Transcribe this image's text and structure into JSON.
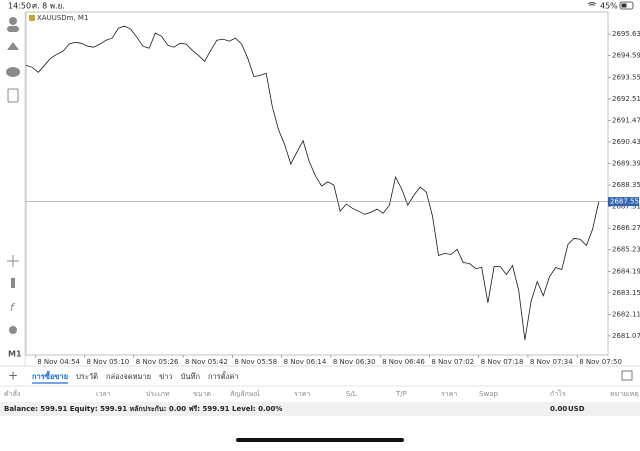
{
  "status_bar": {
    "time": "14:50",
    "date": "ศ. 8 พ.ย.",
    "battery": "45%"
  },
  "chart_data": {
    "type": "line",
    "title": "XAUUSDm, M1",
    "series": [
      {
        "color": "#1a1a1a",
        "x": [
          "8 Nov 04:51",
          "8 Nov 04:53",
          "8 Nov 04:55",
          "8 Nov 04:57",
          "8 Nov 04:59",
          "8 Nov 05:01",
          "8 Nov 05:03",
          "8 Nov 05:05",
          "8 Nov 05:07",
          "8 Nov 05:09",
          "8 Nov 05:11",
          "8 Nov 05:13",
          "8 Nov 05:15",
          "8 Nov 05:17",
          "8 Nov 05:19",
          "8 Nov 05:21",
          "8 Nov 05:23",
          "8 Nov 05:25",
          "8 Nov 05:27",
          "8 Nov 05:29",
          "8 Nov 05:31",
          "8 Nov 05:33",
          "8 Nov 05:35",
          "8 Nov 05:37",
          "8 Nov 05:39",
          "8 Nov 05:41",
          "8 Nov 05:43",
          "8 Nov 05:45",
          "8 Nov 05:47",
          "8 Nov 05:49",
          "8 Nov 05:51",
          "8 Nov 05:53",
          "8 Nov 05:55",
          "8 Nov 05:57",
          "8 Nov 05:59",
          "8 Nov 06:01",
          "8 Nov 06:03",
          "8 Nov 06:05",
          "8 Nov 06:07",
          "8 Nov 06:09",
          "8 Nov 06:11",
          "8 Nov 06:13",
          "8 Nov 06:15",
          "8 Nov 06:17",
          "8 Nov 06:19",
          "8 Nov 06:21",
          "8 Nov 06:23",
          "8 Nov 06:25",
          "8 Nov 06:27",
          "8 Nov 06:29",
          "8 Nov 06:31",
          "8 Nov 06:33",
          "8 Nov 06:35",
          "8 Nov 06:37",
          "8 Nov 06:39",
          "8 Nov 06:41",
          "8 Nov 06:43",
          "8 Nov 06:45",
          "8 Nov 06:47",
          "8 Nov 06:49",
          "8 Nov 06:51",
          "8 Nov 06:53",
          "8 Nov 06:55",
          "8 Nov 06:57",
          "8 Nov 06:59",
          "8 Nov 07:01",
          "8 Nov 07:03",
          "8 Nov 07:05",
          "8 Nov 07:07",
          "8 Nov 07:09",
          "8 Nov 07:11",
          "8 Nov 07:13",
          "8 Nov 07:15",
          "8 Nov 07:17",
          "8 Nov 07:19",
          "8 Nov 07:21",
          "8 Nov 07:23",
          "8 Nov 07:25",
          "8 Nov 07:27",
          "8 Nov 07:29",
          "8 Nov 07:31",
          "8 Nov 07:33",
          "8 Nov 07:35",
          "8 Nov 07:37",
          "8 Nov 07:39",
          "8 Nov 07:41",
          "8 Nov 07:43",
          "8 Nov 07:45",
          "8 Nov 07:47",
          "8 Nov 07:49",
          "8 Nov 07:51",
          "8 Nov 07:53",
          "8 Nov 07:55",
          "8 Nov 07:57"
        ],
        "values": [
          2694.13,
          2694.03,
          2693.79,
          2694.13,
          2694.47,
          2694.66,
          2694.81,
          2695.15,
          2695.24,
          2695.19,
          2695.05,
          2695.0,
          2695.15,
          2695.34,
          2695.44,
          2695.92,
          2696.02,
          2695.87,
          2695.48,
          2695.05,
          2694.95,
          2695.68,
          2695.53,
          2695.1,
          2695.0,
          2695.19,
          2695.15,
          2694.85,
          2694.61,
          2694.32,
          2694.85,
          2695.34,
          2695.39,
          2695.29,
          2695.44,
          2695.15,
          2694.47,
          2693.59,
          2693.64,
          2693.74,
          2692.14,
          2691.02,
          2690.29,
          2689.37,
          2689.95,
          2690.49,
          2689.47,
          2688.79,
          2688.3,
          2688.5,
          2688.35,
          2687.09,
          2687.43,
          2687.23,
          2687.09,
          2686.94,
          2687.04,
          2687.19,
          2686.99,
          2687.38,
          2688.74,
          2688.16,
          2687.38,
          2687.87,
          2688.25,
          2688.01,
          2686.85,
          2684.95,
          2685.05,
          2685.0,
          2685.25,
          2684.61,
          2684.57,
          2684.32,
          2684.37,
          2682.67,
          2684.42,
          2684.42,
          2684.03,
          2684.47,
          2683.26,
          2680.88,
          2682.72,
          2683.69,
          2683.01,
          2683.93,
          2684.37,
          2684.27,
          2685.49,
          2685.78,
          2685.73,
          2685.44,
          2686.22,
          2687.55
        ]
      }
    ],
    "xlim": [
      "8 Nov 04:51",
      "8 Nov 08:00"
    ],
    "xticks": [
      "8 Nov 04:54",
      "8 Nov 05:10",
      "8 Nov 05:26",
      "8 Nov 05:42",
      "8 Nov 05:58",
      "8 Nov 06:14",
      "8 Nov 06:30",
      "8 Nov 06:46",
      "8 Nov 07:02",
      "8 Nov 07:18",
      "8 Nov 07:34",
      "8 Nov 07:50"
    ],
    "ylim": [
      2680.15,
      2696.7
    ],
    "yticks": [
      {
        "value": 2695.63,
        "label": "2695.630"
      },
      {
        "value": 2694.59,
        "label": "2694.590"
      },
      {
        "value": 2693.55,
        "label": "2693.550"
      },
      {
        "value": 2692.51,
        "label": "2692.510"
      },
      {
        "value": 2691.47,
        "label": "2691.470"
      },
      {
        "value": 2690.43,
        "label": "2690.430"
      },
      {
        "value": 2689.39,
        "label": "2689.390"
      },
      {
        "value": 2688.35,
        "label": "2688.350"
      },
      {
        "value": 2687.31,
        "label": "2687.310"
      },
      {
        "value": 2686.27,
        "label": "2686.270"
      },
      {
        "value": 2685.23,
        "label": "2685.230"
      },
      {
        "value": 2684.19,
        "label": "2684.190"
      },
      {
        "value": 2683.15,
        "label": "2683.150"
      },
      {
        "value": 2682.11,
        "label": "2682.110"
      },
      {
        "value": 2681.07,
        "label": "2681.070"
      }
    ],
    "current_price": {
      "value": 2687.552,
      "label": "2687.552"
    },
    "grid": false
  },
  "timeframe": "M1",
  "tabs": [
    "การซื้อขาย",
    "ประวัติ",
    "กล่องจดหมาย",
    "ข่าว",
    "บันทึก",
    "การตั้งค่า"
  ],
  "table": {
    "headers": [
      "คำสั่ง",
      "เวลา",
      "ประเภท",
      "ขนาด",
      "สัญลักษณ์",
      "ราคา",
      "S/L",
      "T/P",
      "ราคา",
      "Swap",
      "กำไร",
      "หมายเหตุ"
    ]
  },
  "balance": {
    "summary": "Balance: 599.91 Equity: 599.91 หลักประกัน: 0.00 ฟรี: 599.91 Level: 0.00%",
    "profit": "0.00",
    "currency": "USD"
  }
}
